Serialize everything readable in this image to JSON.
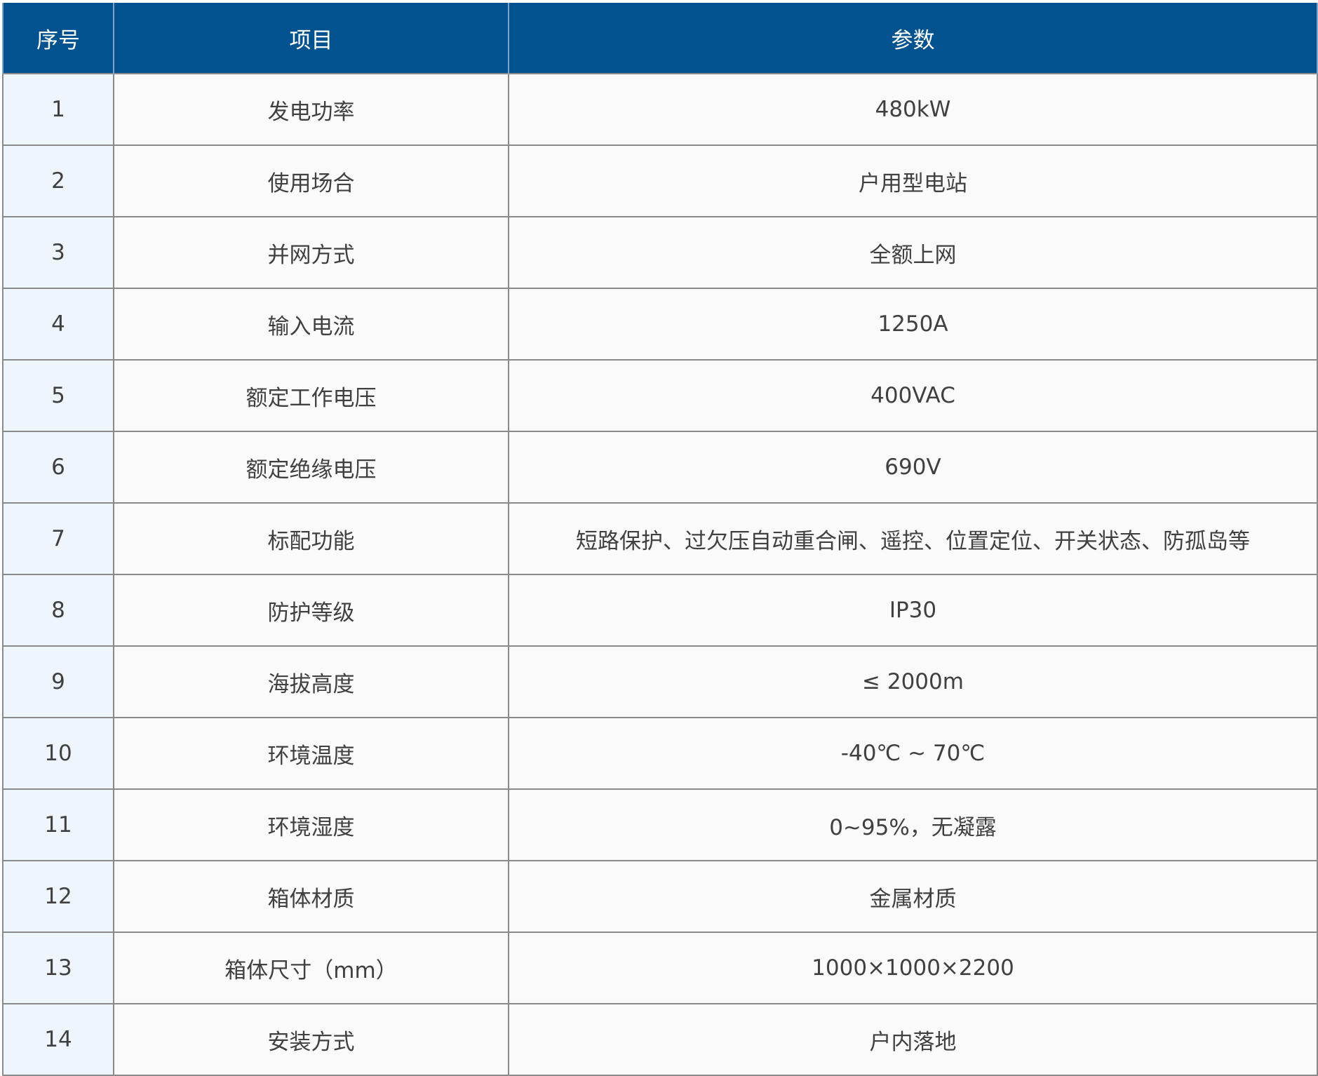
{
  "header": {
    "col_index": "序号",
    "col_item": "项目",
    "col_param": "参数"
  },
  "colors": {
    "header_bg": "#02528f",
    "index_bg": "#eef5fc",
    "cell_bg": "#fafafa",
    "text": "#404040"
  },
  "rows": [
    {
      "index": "1",
      "item": "发电功率",
      "param": "480kW"
    },
    {
      "index": "2",
      "item": "使用场合",
      "param": "户用型电站"
    },
    {
      "index": "3",
      "item": "并网方式",
      "param": "全额上网"
    },
    {
      "index": "4",
      "item": "输入电流",
      "param": "1250A"
    },
    {
      "index": "5",
      "item": "额定工作电压",
      "param": "400VAC"
    },
    {
      "index": "6",
      "item": "额定绝缘电压",
      "param": "690V"
    },
    {
      "index": "7",
      "item": "标配功能",
      "param": "短路保护、过欠压自动重合闸、遥控、位置定位、开关状态、防孤岛等"
    },
    {
      "index": "8",
      "item": "防护等级",
      "param": "IP30"
    },
    {
      "index": "9",
      "item": "海拔高度",
      "param": "≤ 2000m"
    },
    {
      "index": "10",
      "item": "环境温度",
      "param": "-40℃ ~ 70℃"
    },
    {
      "index": "11",
      "item": "环境湿度",
      "param": "0~95%，无凝露"
    },
    {
      "index": "12",
      "item": "箱体材质",
      "param": "金属材质"
    },
    {
      "index": "13",
      "item": "箱体尺寸（mm）",
      "param": "1000×1000×2200"
    },
    {
      "index": "14",
      "item": "安装方式",
      "param": "户内落地"
    }
  ]
}
